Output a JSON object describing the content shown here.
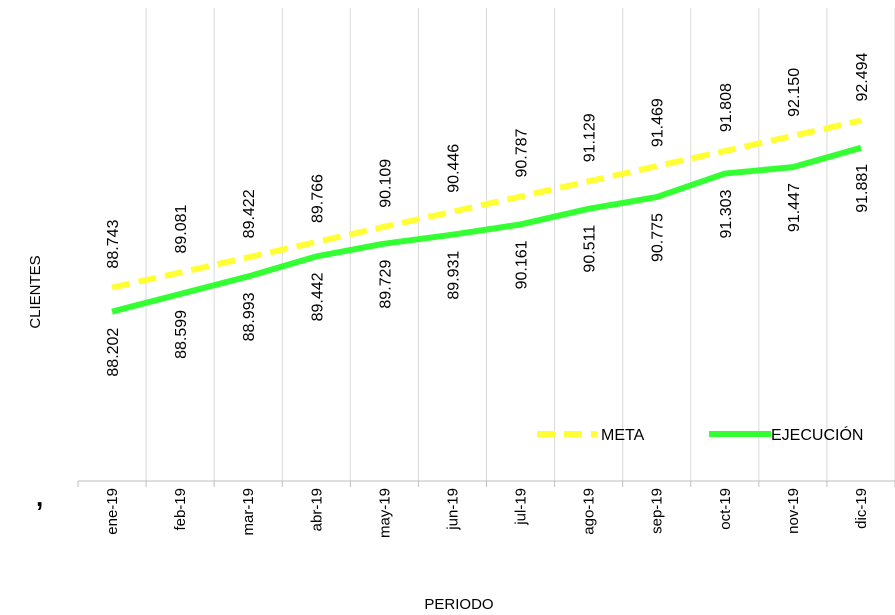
{
  "chart_data": {
    "type": "line",
    "categories": [
      "ene-19",
      "feb-19",
      "mar-19",
      "abr-19",
      "may-19",
      "jun-19",
      "jul-19",
      "ago-19",
      "sep-19",
      "oct-19",
      "nov-19",
      "dic-19"
    ],
    "series": [
      {
        "name": "META",
        "values": [
          88.743,
          89.081,
          89.422,
          89.766,
          90.109,
          90.446,
          90.787,
          91.129,
          91.469,
          91.808,
          92.15,
          92.494
        ],
        "labels": [
          "88.743",
          "89.081",
          "89.422",
          "89.766",
          "90.109",
          "90.446",
          "90.787",
          "91.129",
          "91.469",
          "91.808",
          "92.150",
          "92.494"
        ],
        "color": "#FFFF33",
        "style": "dashed"
      },
      {
        "name": "EJECUCIÓN",
        "values": [
          88.202,
          88.599,
          88.993,
          89.442,
          89.729,
          89.931,
          90.161,
          90.511,
          90.775,
          91.303,
          91.447,
          91.881
        ],
        "labels": [
          "88.202",
          "88.599",
          "88.993",
          "89.442",
          "89.729",
          "89.931",
          "90.161",
          "90.511",
          "90.775",
          "91.303",
          "91.447",
          "91.881"
        ],
        "color": "#33FF33",
        "style": "solid"
      }
    ],
    "title": "",
    "xlabel": "PERIODO",
    "ylabel": "CLIENTES",
    "ylim": [
      84.4,
      95.2
    ],
    "grid": "vertical",
    "legend": "bottom-right"
  },
  "stray_mark": ","
}
